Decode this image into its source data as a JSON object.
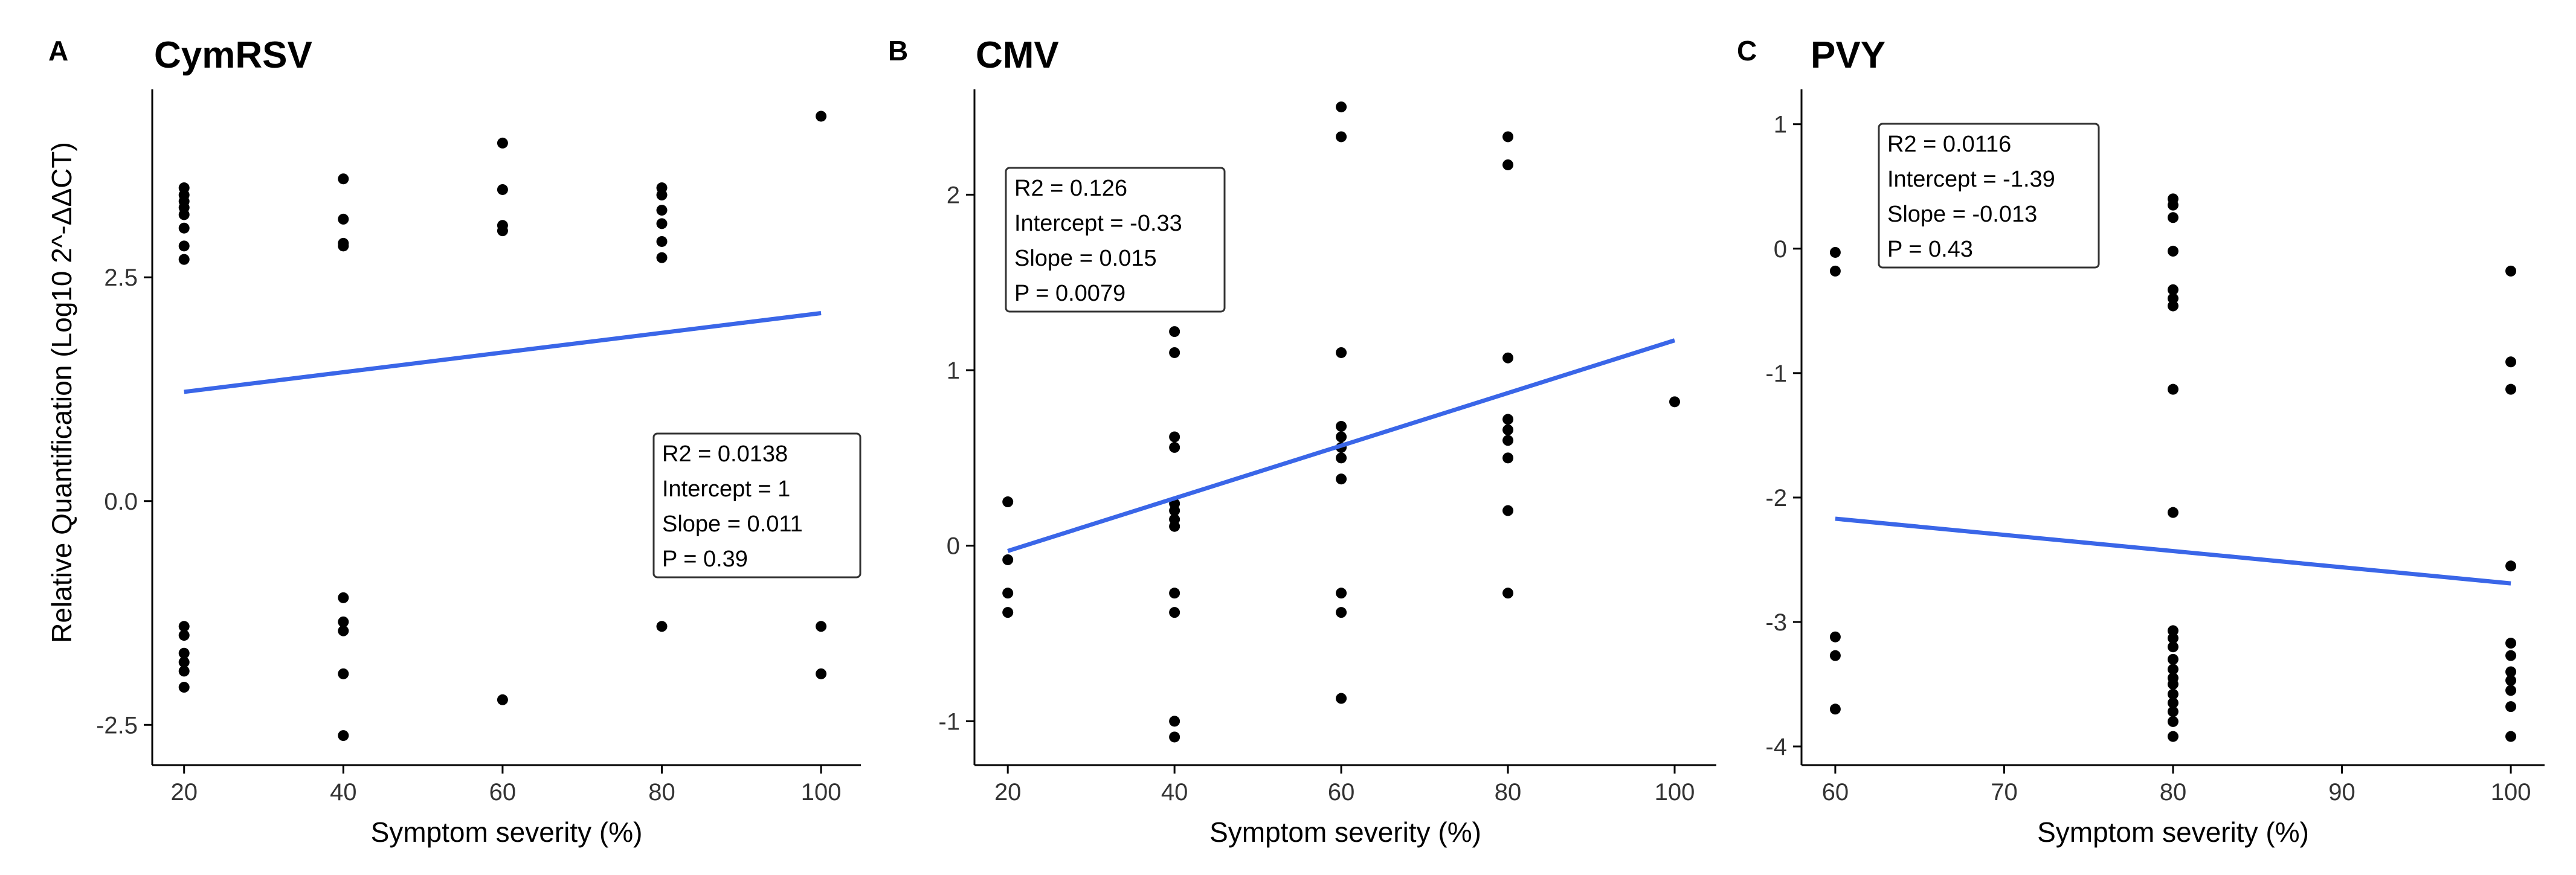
{
  "figure": {
    "y_axis_label": "Relative Quantification (Log10 2^-ΔΔCT)"
  },
  "colors": {
    "points": "#000000",
    "fit_line": "#3a66e8",
    "axis": "#000000",
    "box_border": "#333333"
  },
  "chart_data": [
    {
      "type": "scatter",
      "panel": "A",
      "title": "CymRSV",
      "xlabel": "Symptom severity (%)",
      "ylabel": "Relative Quantification (Log10 2^-ΔΔCT)",
      "xlim": [
        16,
        105
      ],
      "ylim": [
        -2.95,
        4.6
      ],
      "xticks": [
        20,
        40,
        60,
        80,
        100
      ],
      "xtick_labels": [
        "20",
        "40",
        "60",
        "80",
        "100"
      ],
      "yticks": [
        -2.5,
        0,
        2.5
      ],
      "ytick_labels": [
        "-2.5",
        "0.0",
        "2.5"
      ],
      "series": [
        {
          "name": "samples",
          "points": [
            [
              20,
              3.5
            ],
            [
              20,
              3.42
            ],
            [
              20,
              3.35
            ],
            [
              20,
              3.28
            ],
            [
              20,
              3.2
            ],
            [
              20,
              3.05
            ],
            [
              20,
              2.85
            ],
            [
              20,
              2.7
            ],
            [
              20,
              -1.4
            ],
            [
              20,
              -1.5
            ],
            [
              20,
              -1.7
            ],
            [
              20,
              -1.8
            ],
            [
              20,
              -1.9
            ],
            [
              20,
              -2.08
            ],
            [
              40,
              3.6
            ],
            [
              40,
              3.15
            ],
            [
              40,
              2.88
            ],
            [
              40,
              2.85
            ],
            [
              40,
              -1.08
            ],
            [
              40,
              -1.35
            ],
            [
              40,
              -1.45
            ],
            [
              40,
              -1.93
            ],
            [
              40,
              -2.62
            ],
            [
              60,
              4.0
            ],
            [
              60,
              3.48
            ],
            [
              60,
              3.08
            ],
            [
              60,
              3.02
            ],
            [
              60,
              -2.22
            ],
            [
              80,
              3.5
            ],
            [
              80,
              3.42
            ],
            [
              80,
              3.25
            ],
            [
              80,
              3.1
            ],
            [
              80,
              2.9
            ],
            [
              80,
              2.72
            ],
            [
              80,
              -1.4
            ],
            [
              100,
              4.3
            ],
            [
              100,
              -1.4
            ],
            [
              100,
              -1.93
            ]
          ]
        }
      ],
      "fit_line": {
        "intercept": 1.0,
        "slope": 0.011,
        "x_range": [
          20,
          100
        ]
      },
      "annotation": [
        "R2 =  0.0138",
        "Intercept = 1",
        "Slope = 0.011",
        "P = 0.39"
      ],
      "annotation_position": "middle-right"
    },
    {
      "type": "scatter",
      "panel": "B",
      "title": "CMV",
      "xlabel": "Symptom severity (%)",
      "ylabel": "",
      "xlim": [
        16,
        105
      ],
      "ylim": [
        -1.25,
        2.6
      ],
      "xticks": [
        20,
        40,
        60,
        80,
        100
      ],
      "xtick_labels": [
        "20",
        "40",
        "60",
        "80",
        "100"
      ],
      "yticks": [
        -1,
        0,
        1,
        2
      ],
      "ytick_labels": [
        "-1",
        "0",
        "1",
        "2"
      ],
      "series": [
        {
          "name": "samples",
          "points": [
            [
              20,
              0.25
            ],
            [
              20,
              -0.08
            ],
            [
              20,
              -0.27
            ],
            [
              20,
              -0.38
            ],
            [
              40,
              1.22
            ],
            [
              40,
              1.1
            ],
            [
              40,
              0.62
            ],
            [
              40,
              0.56
            ],
            [
              40,
              0.24
            ],
            [
              40,
              0.2
            ],
            [
              40,
              0.15
            ],
            [
              40,
              0.11
            ],
            [
              40,
              -0.27
            ],
            [
              40,
              -0.38
            ],
            [
              40,
              -1.0
            ],
            [
              40,
              -1.09
            ],
            [
              60,
              2.5
            ],
            [
              60,
              2.33
            ],
            [
              60,
              1.1
            ],
            [
              60,
              0.68
            ],
            [
              60,
              0.62
            ],
            [
              60,
              0.56
            ],
            [
              60,
              0.5
            ],
            [
              60,
              0.38
            ],
            [
              60,
              -0.27
            ],
            [
              60,
              -0.38
            ],
            [
              60,
              -0.87
            ],
            [
              80,
              2.33
            ],
            [
              80,
              2.17
            ],
            [
              80,
              1.07
            ],
            [
              80,
              0.72
            ],
            [
              80,
              0.66
            ],
            [
              80,
              0.6
            ],
            [
              80,
              0.5
            ],
            [
              80,
              0.2
            ],
            [
              80,
              -0.27
            ],
            [
              100,
              0.82
            ]
          ]
        }
      ],
      "fit_line": {
        "intercept": -0.33,
        "slope": 0.015,
        "x_range": [
          20,
          100
        ]
      },
      "annotation": [
        "R2 =  0.126",
        "Intercept = -0.33",
        "Slope = 0.015",
        "P = 0.0079"
      ],
      "annotation_position": "top-left"
    },
    {
      "type": "scatter",
      "panel": "C",
      "title": "PVY",
      "xlabel": "Symptom severity (%)",
      "ylabel": "",
      "xlim": [
        58,
        102
      ],
      "ylim": [
        -4.15,
        1.28
      ],
      "xticks": [
        60,
        70,
        80,
        90,
        100
      ],
      "xtick_labels": [
        "60",
        "70",
        "80",
        "90",
        "100"
      ],
      "yticks": [
        -4,
        -3,
        -2,
        -1,
        0,
        1
      ],
      "ytick_labels": [
        "-4",
        "-3",
        "-2",
        "-1",
        "0",
        "1"
      ],
      "series": [
        {
          "name": "samples",
          "points": [
            [
              60,
              -0.03
            ],
            [
              60,
              -0.18
            ],
            [
              60,
              -3.12
            ],
            [
              60,
              -3.27
            ],
            [
              60,
              -3.7
            ],
            [
              80,
              0.4
            ],
            [
              80,
              0.35
            ],
            [
              80,
              0.25
            ],
            [
              80,
              -0.02
            ],
            [
              80,
              -0.33
            ],
            [
              80,
              -0.4
            ],
            [
              80,
              -0.46
            ],
            [
              80,
              -1.13
            ],
            [
              80,
              -2.12
            ],
            [
              80,
              -3.07
            ],
            [
              80,
              -3.13
            ],
            [
              80,
              -3.2
            ],
            [
              80,
              -3.3
            ],
            [
              80,
              -3.38
            ],
            [
              80,
              -3.45
            ],
            [
              80,
              -3.5
            ],
            [
              80,
              -3.58
            ],
            [
              80,
              -3.65
            ],
            [
              80,
              -3.72
            ],
            [
              80,
              -3.8
            ],
            [
              80,
              -3.92
            ],
            [
              100,
              -0.18
            ],
            [
              100,
              -0.91
            ],
            [
              100,
              -1.13
            ],
            [
              100,
              -2.55
            ],
            [
              100,
              -3.17
            ],
            [
              100,
              -3.27
            ],
            [
              100,
              -3.4
            ],
            [
              100,
              -3.47
            ],
            [
              100,
              -3.55
            ],
            [
              100,
              -3.68
            ],
            [
              100,
              -3.92
            ]
          ]
        }
      ],
      "fit_line": {
        "intercept": -1.39,
        "slope": -0.013,
        "x_range": [
          60,
          100
        ]
      },
      "annotation": [
        "R2 =  0.0116",
        "Intercept = -1.39",
        "Slope = -0.013",
        "P = 0.43"
      ],
      "annotation_position": "top-left"
    }
  ]
}
